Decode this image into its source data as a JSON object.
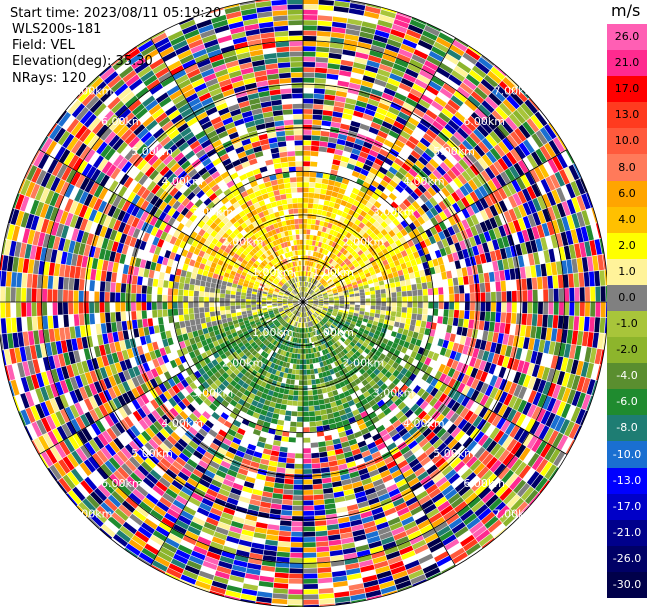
{
  "header": {
    "start_time": "Start time: 2023/08/11 05:19:20",
    "site": "WLS200s-181",
    "field": "Field: VEL",
    "elevation": "Elevation(deg): 35.30",
    "nrays": "NRays: 120"
  },
  "chart_data": {
    "type": "ppi-polar",
    "field": "VEL",
    "units": "m/s",
    "nrays": 120,
    "max_range_km": 7.0,
    "range_rings": [
      "1.00km",
      "2.00km",
      "3.00km",
      "4.00km",
      "5.00km",
      "6.00km",
      "7.00km"
    ],
    "spokes_deg": [
      0,
      30,
      60,
      90,
      120,
      150
    ],
    "grid": true,
    "colorbar": {
      "position": "right",
      "unit_label": "m/s",
      "entries": [
        {
          "label": "26.0",
          "color": "#ff5fb4"
        },
        {
          "label": "21.0",
          "color": "#ff2a8f"
        },
        {
          "label": "17.0",
          "color": "#ff0000"
        },
        {
          "label": "13.0",
          "color": "#ff3b1f"
        },
        {
          "label": "10.0",
          "color": "#ff5a3c"
        },
        {
          "label": "8.0",
          "color": "#ff7a5a"
        },
        {
          "label": "6.0",
          "color": "#ffa500"
        },
        {
          "label": "4.0",
          "color": "#ffc000"
        },
        {
          "label": "2.0",
          "color": "#ffff00"
        },
        {
          "label": "1.0",
          "color": "#fff39a"
        },
        {
          "label": "0.0",
          "color": "#808080"
        },
        {
          "label": "-1.0",
          "color": "#a8c53a"
        },
        {
          "label": "-2.0",
          "color": "#8db52c"
        },
        {
          "label": "-4.0",
          "color": "#5a8e2f"
        },
        {
          "label": "-6.0",
          "color": "#1f8b2f"
        },
        {
          "label": "-8.0",
          "color": "#1e7d73"
        },
        {
          "label": "-10.0",
          "color": "#1a6fd1"
        },
        {
          "label": "-13.0",
          "color": "#0000ff"
        },
        {
          "label": "-17.0",
          "color": "#0000c8"
        },
        {
          "label": "-21.0",
          "color": "#00008b"
        },
        {
          "label": "-26.0",
          "color": "#000066"
        },
        {
          "label": "-30.0",
          "color": "#00004a"
        }
      ]
    },
    "velocity_pattern": {
      "inner_range_km": [
        0,
        2.8
      ],
      "north_half": "positive (2.0 to 6.0 m/s)",
      "south_half": "negative (-1.0 to -8.0 m/s)",
      "outer_range": "noise"
    }
  }
}
